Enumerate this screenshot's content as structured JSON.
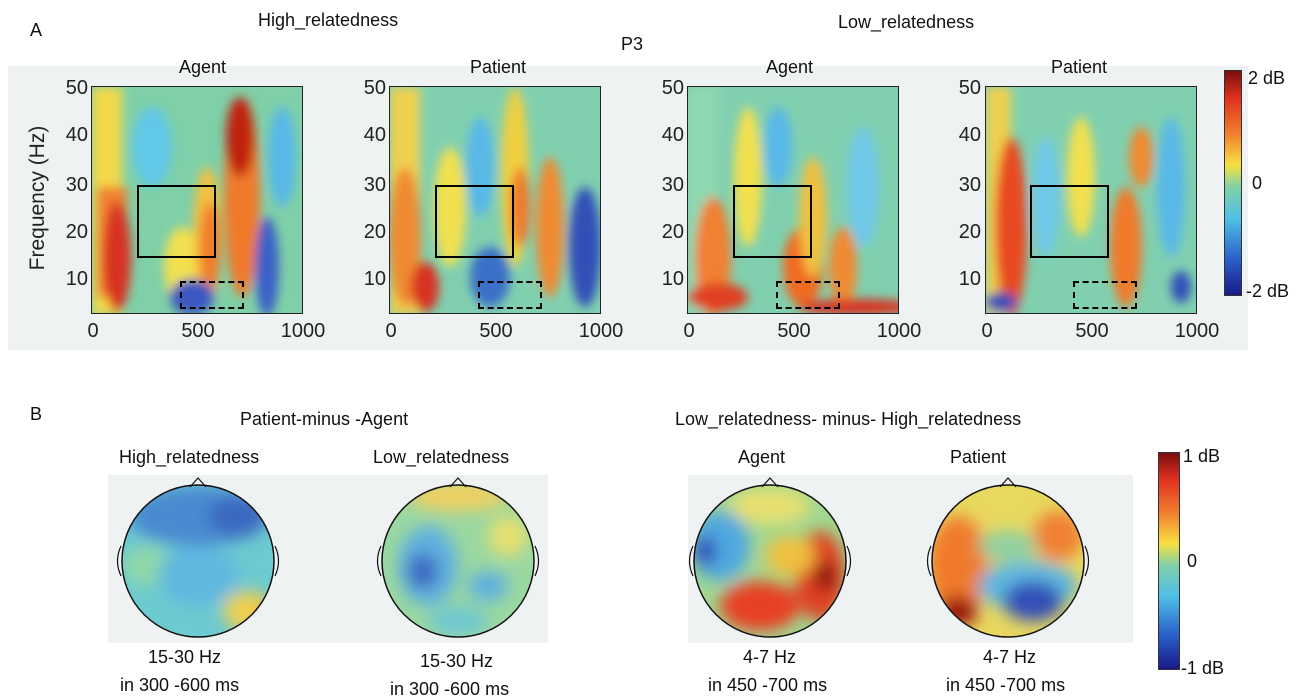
{
  "panel_a": {
    "label": "A",
    "group_high": "High_relatedness",
    "group_low": "Low_relatedness",
    "electrode": "P3",
    "ylabel": "Frequency (Hz)",
    "plots": [
      {
        "title": "Agent"
      },
      {
        "title": "Patient"
      },
      {
        "title": "Agent"
      },
      {
        "title": "Patient"
      }
    ],
    "yticks": [
      "50",
      "40",
      "30",
      "20",
      "10"
    ],
    "xticks": [
      "0",
      "500",
      "1000"
    ],
    "colorbar": {
      "max": "2 dB",
      "mid": "0",
      "min": "-2 dB"
    }
  },
  "panel_b": {
    "label": "B",
    "contrast_left": "Patient-minus -Agent",
    "contrast_right": "Low_relatedness- minus- High_relatedness",
    "topos": [
      {
        "title": "High_relatedness",
        "band": "15-30 Hz",
        "window": "in 300  -600 ms"
      },
      {
        "title": "Low_relatedness",
        "band": "15-30 Hz",
        "window": "in 300  -600 ms"
      },
      {
        "title": "Agent",
        "band": "4-7 Hz",
        "window": "in 450  -700 ms"
      },
      {
        "title": "Patient",
        "band": "4-7 Hz",
        "window": "in 450  -700 ms"
      }
    ],
    "colorbar": {
      "max": "1 dB",
      "mid": "0",
      "min": "-1 dB"
    }
  },
  "colors": {
    "jet_low": "#2020a0",
    "jet_mid": "#40c0a0",
    "jet_high": "#a01010"
  }
}
